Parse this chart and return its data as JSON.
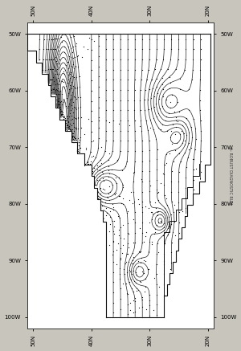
{
  "background_color": "#c8c5bc",
  "plot_bg_color": "#ffffff",
  "fig_width": 3.0,
  "fig_height": 4.37,
  "dpi": 100,
  "top_tick_labels": [
    "50N",
    "40N",
    "30N",
    "20N"
  ],
  "bottom_tick_labels": [
    "50N",
    "40N",
    "30N",
    "20N"
  ],
  "left_tick_labels": [
    "50W",
    "60W",
    "70W",
    "80W",
    "90W",
    "100W"
  ],
  "right_tick_labels": [
    "50W",
    "60W",
    "70W",
    "80W",
    "90W",
    "100W"
  ],
  "right_label": "A- ROBUST DIAGNOSTIC RUN",
  "contour_color": "#222222",
  "boundary_color": "#111111",
  "dot_color": "#111111"
}
